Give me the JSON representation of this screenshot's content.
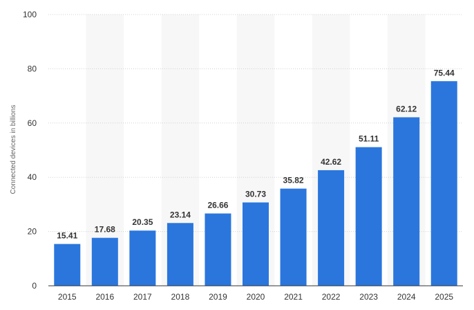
{
  "chart_data": {
    "type": "bar",
    "title": "",
    "xlabel": "",
    "ylabel": "Connected devices in billions",
    "categories": [
      "2015",
      "2016",
      "2017",
      "2018",
      "2019",
      "2020",
      "2021",
      "2022",
      "2023",
      "2024",
      "2025"
    ],
    "values": [
      15.41,
      17.68,
      20.35,
      23.14,
      26.66,
      30.73,
      35.82,
      42.62,
      51.11,
      62.12,
      75.44
    ],
    "value_labels": [
      "15.41",
      "17.68",
      "20.35",
      "23.14",
      "26.66",
      "30.73",
      "35.82",
      "42.62",
      "51.11",
      "62.12",
      "75.44"
    ],
    "ylim": [
      0,
      100
    ],
    "y_ticks": [
      "0",
      "20",
      "40",
      "60",
      "80",
      "100"
    ],
    "y_tick_values": [
      0,
      20,
      40,
      60,
      80,
      100
    ],
    "grid": true,
    "alternating_column_bands": true,
    "colors": {
      "bar": "#2a76dd",
      "band": "#f7f7f7",
      "grid": "#d0d0d0",
      "axis": "#333333",
      "text": "#333333",
      "axis_title": "#666666"
    }
  }
}
